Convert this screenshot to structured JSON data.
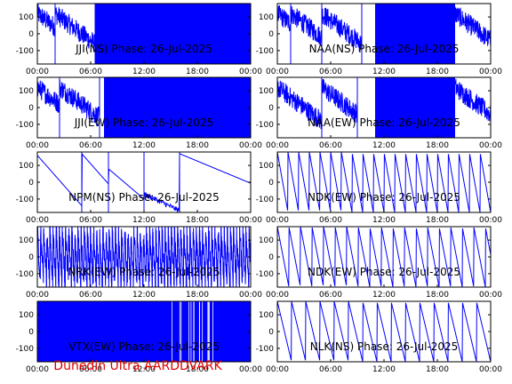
{
  "footer": "Dunedin Ultra AARDDVARK",
  "colors": {
    "trace": "#0000ff",
    "footer": "#e00000"
  },
  "chart_data": [
    {
      "type": "line",
      "title": "JJI(NS) Phase: 26-Jul-2025",
      "x_ticks": [
        "00:00",
        "06:00",
        "12:00",
        "18:00",
        "00:00"
      ],
      "y_ticks": [
        "100",
        "0",
        "-100"
      ],
      "xlim_hours": [
        0,
        24
      ],
      "ylim": [
        -180,
        180
      ],
      "pattern": "noise_then_saturated",
      "segments": [
        [
          0.0,
          2.0
        ],
        [
          2.0,
          6.5
        ]
      ],
      "saturated": [
        [
          6.5,
          24.0
        ]
      ]
    },
    {
      "type": "line",
      "title": "NAA(NS) Phase: 26-Jul-2025",
      "x_ticks": [
        "00:00",
        "06:00",
        "12:00",
        "18:00",
        "00:00"
      ],
      "y_ticks": [
        "100",
        "0",
        "-100"
      ],
      "xlim_hours": [
        0,
        24
      ],
      "ylim": [
        -180,
        180
      ],
      "pattern": "noisy_drift_with_gaps",
      "segments": [
        [
          0.0,
          1.5
        ],
        [
          1.5,
          5.0
        ],
        [
          5.0,
          9.5
        ],
        [
          20.0,
          24.0
        ]
      ],
      "saturated": [
        [
          11.0,
          20.0
        ]
      ]
    },
    {
      "type": "line",
      "title": "JJI(EW) Phase: 26-Jul-2025",
      "x_ticks": [
        "00:00",
        "06:00",
        "12:00",
        "18:00",
        "00:00"
      ],
      "y_ticks": [
        "100",
        "0",
        "-100"
      ],
      "xlim_hours": [
        0,
        24
      ],
      "ylim": [
        -180,
        180
      ],
      "pattern": "noise_then_saturated",
      "segments": [
        [
          0.0,
          2.5
        ],
        [
          2.5,
          7.0
        ]
      ],
      "saturated": [
        [
          7.5,
          24.0
        ]
      ]
    },
    {
      "type": "line",
      "title": "NAA(EW) Phase: 26-Jul-2025",
      "x_ticks": [
        "00:00",
        "06:00",
        "12:00",
        "18:00",
        "00:00"
      ],
      "y_ticks": [
        "100",
        "0",
        "-100"
      ],
      "xlim_hours": [
        0,
        24
      ],
      "ylim": [
        -180,
        180
      ],
      "pattern": "noisy_drift_with_gaps",
      "segments": [
        [
          0.0,
          5.0
        ],
        [
          5.0,
          9.0
        ],
        [
          20.0,
          24.0
        ]
      ],
      "saturated": [
        [
          11.0,
          20.0
        ]
      ]
    },
    {
      "type": "line",
      "title": "NPM(NS) Phase: 26-Jul-2025",
      "x_ticks": [
        "00:00",
        "06:00",
        "12:00",
        "18:00",
        "00:00"
      ],
      "y_ticks": [
        "100",
        "0",
        "-100"
      ],
      "xlim_hours": [
        0,
        24
      ],
      "ylim": [
        -180,
        180
      ],
      "pattern": "slow_drift",
      "segments": [
        [
          0.0,
          5.0
        ],
        [
          5.0,
          8.0
        ],
        [
          8.0,
          12.0
        ],
        [
          12.0,
          16.0
        ],
        [
          16.0,
          24.0
        ]
      ],
      "saturated": []
    },
    {
      "type": "line",
      "title": "NDK(EW) Phase: 26-Jul-2025",
      "x_ticks": [
        "00:00",
        "06:00",
        "12:00",
        "18:00",
        "00:00"
      ],
      "y_ticks": [
        "100",
        "0",
        "-100"
      ],
      "xlim_hours": [
        0,
        24
      ],
      "ylim": [
        -180,
        180
      ],
      "pattern": "sawtooth",
      "sawtooth_period_hours": 1.2,
      "saturated": []
    },
    {
      "type": "line",
      "title": "NRK(EW) Phase: 26-Jul-2025",
      "x_ticks": [
        "00:00",
        "06:00",
        "12:00",
        "18:00",
        "00:00"
      ],
      "y_ticks": [
        "100",
        "0",
        "-100"
      ],
      "xlim_hours": [
        0,
        24
      ],
      "ylim": [
        -180,
        180
      ],
      "pattern": "dense_wrap",
      "sawtooth_period_hours": 0.35,
      "saturated": []
    },
    {
      "type": "line",
      "title": "NDK(EW) Phase: 26-Jul-2025",
      "x_ticks": [
        "00:00",
        "06:00",
        "12:00",
        "18:00",
        "00:00"
      ],
      "y_ticks": [
        "100",
        "0",
        "-100"
      ],
      "xlim_hours": [
        0,
        24
      ],
      "ylim": [
        -180,
        180
      ],
      "pattern": "sawtooth",
      "sawtooth_period_hours": 1.3,
      "saturated": []
    },
    {
      "type": "line",
      "title": "VTX(EW) Phase: 26-Jul-2025",
      "x_ticks": [
        "00:00",
        "06:00",
        "12:00",
        "18:00",
        "00:00"
      ],
      "y_ticks": [
        "100",
        "0",
        "-100"
      ],
      "xlim_hours": [
        0,
        24
      ],
      "ylim": [
        -180,
        180
      ],
      "pattern": "saturated_with_gaps",
      "segments": [],
      "saturated": [
        [
          0.0,
          24.0
        ]
      ]
    },
    {
      "type": "line",
      "title": "NLK(NS) Phase: 26-Jul-2025",
      "x_ticks": [
        "00:00",
        "06:00",
        "12:00",
        "18:00",
        "00:00"
      ],
      "y_ticks": [
        "100",
        "0",
        "-100"
      ],
      "xlim_hours": [
        0,
        24
      ],
      "ylim": [
        -180,
        180
      ],
      "pattern": "sawtooth",
      "sawtooth_period_hours": 1.6,
      "saturated": []
    }
  ]
}
